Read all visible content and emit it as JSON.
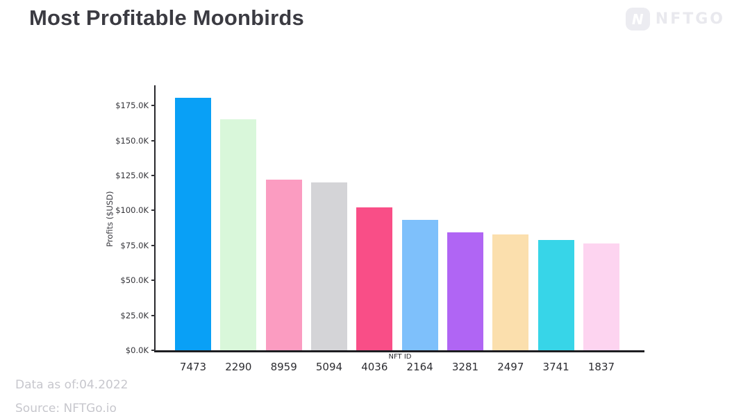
{
  "header": {
    "title": "Most Profitable Moonbirds",
    "logo_text": "NFTGO",
    "logo_icon_letter": "N"
  },
  "chart_data": {
    "type": "bar",
    "title": "Most Profitable Moonbirds",
    "xlabel": "NFT ID",
    "ylabel": "Profits ($USD)",
    "categories": [
      "7473",
      "2290",
      "8959",
      "5094",
      "4036",
      "2164",
      "3281",
      "2497",
      "3741",
      "1837"
    ],
    "values": [
      180.5,
      165.2,
      122.0,
      119.9,
      102.1,
      93.2,
      84.4,
      82.9,
      78.9,
      76.3
    ],
    "values_unit": "thousand USD",
    "bar_colors": [
      "#09A0F6",
      "#D9F7DA",
      "#FB9CC1",
      "#D4D4D7",
      "#F94E87",
      "#7EC0FB",
      "#B065F4",
      "#FBDFAD",
      "#37D5E8",
      "#FDD4F0"
    ],
    "ylim": [
      0,
      190.9
    ],
    "yticks": [
      0,
      25,
      50,
      75,
      100,
      125,
      150,
      175
    ],
    "ytick_labels": [
      "$0.0K",
      "$25.0K",
      "$50.0K",
      "$75.0K",
      "$100.0K",
      "$125.0K",
      "$150.0K",
      "$175.0K"
    ],
    "grid": false,
    "legend": false,
    "axis_color": "#28282c"
  },
  "footer": {
    "data_as_of": "Data as of:04.2022",
    "source": "Source: NFTGo.io"
  }
}
